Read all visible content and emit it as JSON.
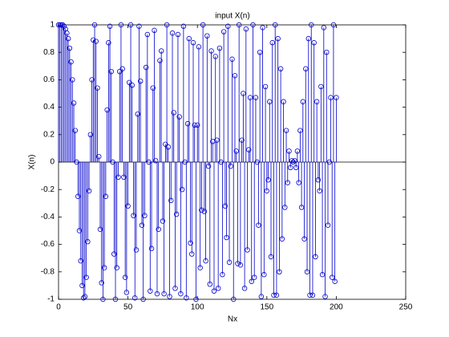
{
  "chart_data": {
    "type": "stem",
    "title": "input X(n)",
    "xlabel": "Nx",
    "ylabel": "X(n)",
    "color": "#0000cc",
    "x": [
      0,
      1,
      2,
      3,
      4,
      5,
      6,
      7,
      8,
      9,
      10,
      11,
      12,
      13,
      14,
      15,
      16,
      17,
      18,
      19,
      20,
      21,
      22,
      23,
      24,
      25,
      26,
      27,
      28,
      29,
      30,
      31,
      32,
      33,
      34,
      35,
      36,
      37,
      38,
      39,
      40,
      41,
      42,
      43,
      44,
      45,
      46,
      47,
      48,
      49,
      50,
      51,
      52,
      53,
      54,
      55,
      56,
      57,
      58,
      59,
      60,
      61,
      62,
      63,
      64,
      65,
      66,
      67,
      68,
      69,
      70,
      71,
      72,
      73,
      74,
      75,
      76,
      77,
      78,
      79,
      80,
      81,
      82,
      83,
      84,
      85,
      86,
      87,
      88,
      89,
      90,
      91,
      92,
      93,
      94,
      95,
      96,
      97,
      98,
      99,
      100,
      101,
      102,
      103,
      104,
      105,
      106,
      107,
      108,
      109,
      110,
      111,
      112,
      113,
      114,
      115,
      116,
      117,
      118,
      119,
      120,
      121,
      122,
      123,
      124,
      125,
      126,
      127,
      128,
      129,
      130,
      131,
      132,
      133,
      134,
      135,
      136,
      137,
      138,
      139,
      140,
      141,
      142,
      143,
      144,
      145,
      146,
      147,
      148,
      149,
      150,
      151,
      152,
      153,
      154,
      155,
      156,
      157,
      158,
      159,
      160,
      161,
      162,
      163,
      164,
      165,
      166,
      167,
      168,
      169,
      170,
      171,
      172,
      173,
      174,
      175,
      176,
      177,
      178,
      179,
      180,
      181,
      182,
      183,
      184,
      185,
      186,
      187,
      188,
      189,
      190,
      191,
      192,
      193,
      194,
      195,
      196,
      197,
      198,
      199,
      200
    ],
    "values": [
      1,
      1,
      1,
      1,
      0.99,
      0.97,
      0.94,
      0.9,
      0.83,
      0.73,
      0.6,
      0.43,
      0.23,
      0,
      -0.25,
      -0.5,
      -0.72,
      -0.9,
      -0.99,
      -0.98,
      -0.84,
      -0.58,
      -0.21,
      0.2,
      0.6,
      0.89,
      1,
      0.88,
      0.54,
      0.04,
      -0.49,
      -0.88,
      -1,
      -0.77,
      -0.25,
      0.38,
      0.87,
      0.99,
      0.66,
      0,
      -0.67,
      -1,
      -0.77,
      -0.11,
      0.66,
      1,
      0.68,
      -0.11,
      -0.84,
      -0.95,
      -0.32,
      0.58,
      1,
      0.56,
      -0.39,
      -0.99,
      -0.64,
      0.35,
      0.99,
      0.59,
      -0.46,
      -1,
      -0.39,
      0.69,
      0.93,
      0,
      -0.94,
      -0.63,
      0.54,
      0.96,
      0.01,
      -0.96,
      -0.49,
      0.74,
      0.81,
      -0.43,
      -0.96,
      0.13,
      1,
      0.11,
      -0.98,
      -0.28,
      0.94,
      0.36,
      -0.92,
      -0.38,
      0.93,
      0.33,
      -0.96,
      -0.2,
      0.99,
      0,
      -0.99,
      0.28,
      0.9,
      -0.59,
      -0.67,
      0.87,
      0.27,
      -1,
      0.27,
      0.84,
      -0.77,
      -0.35,
      1,
      -0.36,
      -0.72,
      0.92,
      -0.03,
      -0.89,
      0.81,
      0.15,
      -0.94,
      0.77,
      0.16,
      -0.92,
      0.83,
      0,
      -0.82,
      0.95,
      -0.32,
      -0.55,
      0.99,
      -0.73,
      -0.03,
      0.75,
      -1,
      0.63,
      0.08,
      -0.74,
      1,
      -0.75,
      0.16,
      0.5,
      -0.92,
      0.97,
      -0.64,
      0.09,
      0.47,
      -0.87,
      1,
      -0.84,
      0.47,
      0,
      -0.46,
      0.8,
      -0.98,
      0.98,
      -0.82,
      0.55,
      -0.21,
      -0.13,
      0.44,
      -0.69,
      0.87,
      -0.97,
      1,
      -0.97,
      0.9,
      -0.8,
      0.68,
      -0.56,
      0.44,
      -0.33,
      0.23,
      -0.15,
      0.08,
      -0.04,
      0.01,
      0,
      0.01,
      -0.04,
      0.08,
      -0.15,
      0.23,
      -0.33,
      0.44,
      -0.56,
      0.68,
      -0.8,
      0.9,
      -0.97,
      1,
      -0.97,
      0.87,
      -0.69,
      0.44,
      -0.13,
      -0.21,
      0.55,
      -0.82,
      0.98,
      -0.98,
      0.8,
      -0.46,
      0,
      0.47,
      -0.84,
      1,
      -0.87,
      0.47
    ],
    "xlim": [
      0,
      250
    ],
    "xticks": [
      0,
      50,
      100,
      150,
      200,
      250
    ],
    "ylim": [
      -1,
      1
    ],
    "yticks": [
      -1,
      -0.8,
      -0.6,
      -0.4,
      -0.2,
      0,
      0.2,
      0.4,
      0.6,
      0.8,
      1
    ],
    "grid": false
  }
}
